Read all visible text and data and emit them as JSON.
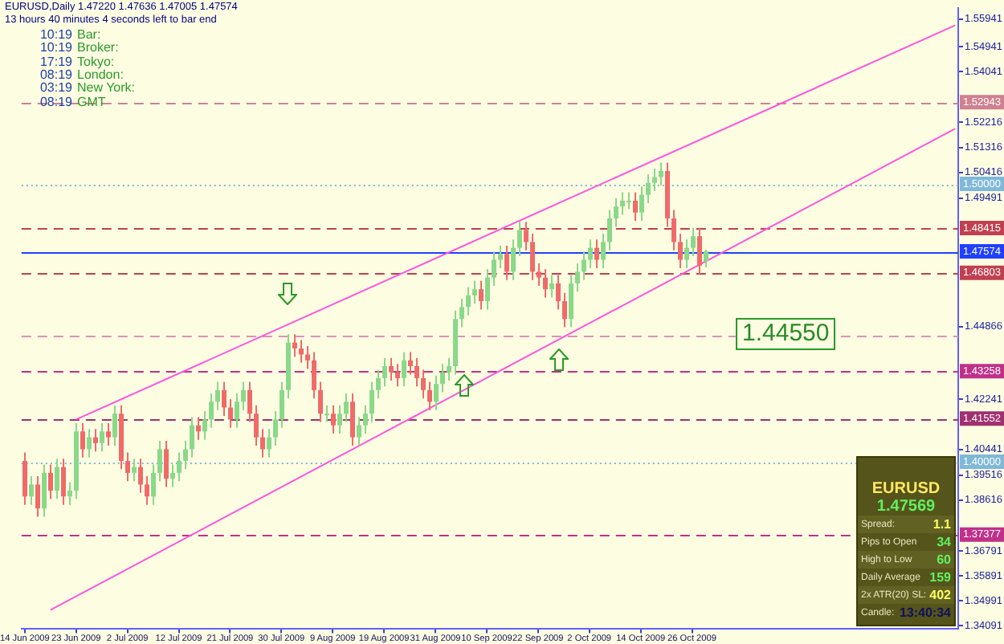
{
  "chart_data": {
    "type": "candlestick",
    "categories": [
      "14 Jun 2009",
      null,
      null,
      null,
      null,
      null,
      null,
      null,
      "23 Jun 2009",
      null,
      null,
      null,
      null,
      null,
      null,
      null,
      "2 Jul 2009",
      null,
      null,
      null,
      null,
      null,
      null,
      null,
      "12 Jul 2009",
      null,
      null,
      null,
      null,
      null,
      null,
      null,
      "21 Jul 2009",
      null,
      null,
      null,
      null,
      null,
      null,
      null,
      "30 Jul 2009",
      null,
      null,
      null,
      null,
      null,
      null,
      null,
      "9 Aug 2009",
      null,
      null,
      null,
      null,
      null,
      null,
      null,
      "19 Aug 2009",
      null,
      null,
      null,
      null,
      null,
      null,
      null,
      "31 Aug 2009",
      null,
      null,
      null,
      null,
      null,
      null,
      null,
      "10 Sep 2009",
      null,
      null,
      null,
      null,
      null,
      null,
      null,
      "22 Sep 2009",
      null,
      null,
      null,
      null,
      null,
      null,
      null,
      "2 Oct 2009",
      null,
      null,
      null,
      null,
      null,
      null,
      null,
      "14 Oct 2009",
      null,
      null,
      null,
      null,
      null,
      null,
      null,
      "26 Oct 2009",
      null,
      null,
      null,
      null,
      null,
      null,
      null,
      null,
      null,
      null,
      null,
      null,
      null,
      null,
      null,
      null,
      null,
      null,
      null,
      null,
      null,
      null,
      null,
      null,
      null,
      null,
      null,
      null,
      null,
      null,
      null,
      null,
      null,
      null,
      null,
      null,
      null,
      null,
      null,
      null,
      null
    ],
    "ohlc": [
      [
        1.4003,
        1.4033,
        1.3845,
        1.3875
      ],
      [
        1.3875,
        1.3948,
        1.3845,
        1.3918
      ],
      [
        1.3918,
        1.3948,
        1.3802,
        1.3832
      ],
      [
        1.3832,
        1.399,
        1.3802,
        1.396
      ],
      [
        1.396,
        1.399,
        1.3866,
        1.3896
      ],
      [
        1.3896,
        1.4011,
        1.3866,
        1.3981
      ],
      [
        1.3981,
        1.4011,
        1.3845,
        1.3875
      ],
      [
        1.3875,
        1.3926,
        1.3845,
        1.3896
      ],
      [
        1.3896,
        1.4139,
        1.3866,
        1.4109
      ],
      [
        1.4109,
        1.4139,
        1.4015,
        1.4045
      ],
      [
        1.4045,
        1.4118,
        1.4015,
        1.4088
      ],
      [
        1.4088,
        1.4118,
        1.4037,
        1.4067
      ],
      [
        1.4067,
        1.4139,
        1.4037,
        1.4109
      ],
      [
        1.4109,
        1.4139,
        1.4058,
        1.4088
      ],
      [
        1.4088,
        1.4203,
        1.4058,
        1.4173
      ],
      [
        1.4173,
        1.4203,
        1.3973,
        1.4003
      ],
      [
        1.4003,
        1.4033,
        1.393,
        1.396
      ],
      [
        1.396,
        1.4011,
        1.393,
        1.3981
      ],
      [
        1.3981,
        1.4011,
        1.3888,
        1.3918
      ],
      [
        1.3918,
        1.3948,
        1.3845,
        1.3875
      ],
      [
        1.3875,
        1.399,
        1.3845,
        1.396
      ],
      [
        1.396,
        1.4075,
        1.393,
        1.4045
      ],
      [
        1.4045,
        1.4075,
        1.3909,
        1.3939
      ],
      [
        1.3939,
        1.399,
        1.3909,
        1.396
      ],
      [
        1.396,
        1.4033,
        1.393,
        1.4003
      ],
      [
        1.4003,
        1.4075,
        1.3973,
        1.4045
      ],
      [
        1.4045,
        1.4161,
        1.4015,
        1.4131
      ],
      [
        1.4131,
        1.4161,
        1.4079,
        1.4109
      ],
      [
        1.4109,
        1.4182,
        1.4079,
        1.4152
      ],
      [
        1.4152,
        1.4246,
        1.4122,
        1.4216
      ],
      [
        1.4216,
        1.4288,
        1.4186,
        1.4258
      ],
      [
        1.4258,
        1.4288,
        1.4165,
        1.4195
      ],
      [
        1.4195,
        1.4225,
        1.4122,
        1.4152
      ],
      [
        1.4152,
        1.4246,
        1.4122,
        1.4216
      ],
      [
        1.4216,
        1.4288,
        1.4186,
        1.4258
      ],
      [
        1.4258,
        1.4288,
        1.4143,
        1.4173
      ],
      [
        1.4173,
        1.4203,
        1.4058,
        1.4088
      ],
      [
        1.4088,
        1.4118,
        1.4015,
        1.4045
      ],
      [
        1.4045,
        1.4118,
        1.4015,
        1.4088
      ],
      [
        1.4088,
        1.4182,
        1.4058,
        1.4152
      ],
      [
        1.4152,
        1.4288,
        1.4122,
        1.4258
      ],
      [
        1.4258,
        1.4459,
        1.4228,
        1.4429
      ],
      [
        1.4429,
        1.4459,
        1.4378,
        1.4408
      ],
      [
        1.4408,
        1.4438,
        1.4356,
        1.4386
      ],
      [
        1.4386,
        1.4416,
        1.4335,
        1.4365
      ],
      [
        1.4365,
        1.4395,
        1.4228,
        1.4258
      ],
      [
        1.4258,
        1.4288,
        1.4143,
        1.4173
      ],
      [
        1.4173,
        1.4203,
        1.4143,
        1.4173
      ],
      [
        1.4173,
        1.4203,
        1.4101,
        1.4131
      ],
      [
        1.4131,
        1.4203,
        1.4101,
        1.4173
      ],
      [
        1.4173,
        1.4246,
        1.4143,
        1.4216
      ],
      [
        1.4216,
        1.4246,
        1.4058,
        1.4088
      ],
      [
        1.4088,
        1.4161,
        1.4058,
        1.4131
      ],
      [
        1.4131,
        1.4203,
        1.4101,
        1.4173
      ],
      [
        1.4173,
        1.4288,
        1.4143,
        1.4258
      ],
      [
        1.4258,
        1.4331,
        1.4228,
        1.4301
      ],
      [
        1.4301,
        1.4374,
        1.4271,
        1.4344
      ],
      [
        1.4344,
        1.4374,
        1.4292,
        1.4322
      ],
      [
        1.4322,
        1.4352,
        1.4271,
        1.4301
      ],
      [
        1.4301,
        1.4395,
        1.4271,
        1.4365
      ],
      [
        1.4365,
        1.4395,
        1.4314,
        1.4344
      ],
      [
        1.4344,
        1.4374,
        1.4271,
        1.4301
      ],
      [
        1.4301,
        1.4331,
        1.4228,
        1.4258
      ],
      [
        1.4258,
        1.4288,
        1.4186,
        1.4216
      ],
      [
        1.4216,
        1.431,
        1.4186,
        1.428
      ],
      [
        1.428,
        1.4352,
        1.425,
        1.4322
      ],
      [
        1.4322,
        1.4374,
        1.4292,
        1.4344
      ],
      [
        1.4344,
        1.4544,
        1.4314,
        1.4514
      ],
      [
        1.4514,
        1.4587,
        1.4484,
        1.4557
      ],
      [
        1.4557,
        1.4629,
        1.4527,
        1.4599
      ],
      [
        1.4599,
        1.4651,
        1.4569,
        1.4621
      ],
      [
        1.4621,
        1.4651,
        1.4548,
        1.4578
      ],
      [
        1.4578,
        1.4693,
        1.4548,
        1.4663
      ],
      [
        1.4663,
        1.4757,
        1.4633,
        1.4727
      ],
      [
        1.4727,
        1.4778,
        1.4697,
        1.4748
      ],
      [
        1.4748,
        1.4778,
        1.4654,
        1.4684
      ],
      [
        1.4684,
        1.48,
        1.4654,
        1.477
      ],
      [
        1.477,
        1.4864,
        1.474,
        1.4834
      ],
      [
        1.4834,
        1.4864,
        1.4761,
        1.4791
      ],
      [
        1.4791,
        1.4821,
        1.4654,
        1.4684
      ],
      [
        1.4684,
        1.4714,
        1.4633,
        1.4663
      ],
      [
        1.4663,
        1.4693,
        1.4591,
        1.4621
      ],
      [
        1.4621,
        1.4672,
        1.4591,
        1.4642
      ],
      [
        1.4642,
        1.4672,
        1.4548,
        1.4578
      ],
      [
        1.4578,
        1.4608,
        1.4484,
        1.4514
      ],
      [
        1.4514,
        1.4672,
        1.4484,
        1.4642
      ],
      [
        1.4642,
        1.4714,
        1.4612,
        1.4684
      ],
      [
        1.4684,
        1.4757,
        1.4654,
        1.4727
      ],
      [
        1.4727,
        1.48,
        1.4697,
        1.477
      ],
      [
        1.477,
        1.48,
        1.4697,
        1.4727
      ],
      [
        1.4727,
        1.4821,
        1.4697,
        1.4791
      ],
      [
        1.4791,
        1.4906,
        1.4761,
        1.4876
      ],
      [
        1.4876,
        1.4949,
        1.4846,
        1.4919
      ],
      [
        1.4919,
        1.497,
        1.4889,
        1.494
      ],
      [
        1.494,
        1.497,
        1.491,
        1.494
      ],
      [
        1.494,
        1.497,
        1.4867,
        1.4897
      ],
      [
        1.4897,
        1.4991,
        1.4867,
        1.4961
      ],
      [
        1.4961,
        1.5034,
        1.4931,
        1.5004
      ],
      [
        1.5004,
        1.5055,
        1.4974,
        1.5025
      ],
      [
        1.5025,
        1.5077,
        1.4995,
        1.5047
      ],
      [
        1.5047,
        1.5077,
        1.4846,
        1.4876
      ],
      [
        1.4876,
        1.4906,
        1.4761,
        1.4791
      ],
      [
        1.4791,
        1.4821,
        1.4697,
        1.4727
      ],
      [
        1.4727,
        1.48,
        1.4697,
        1.477
      ],
      [
        1.477,
        1.4842,
        1.474,
        1.4812
      ],
      [
        1.4812,
        1.4842,
        1.4676,
        1.4706
      ],
      [
        1.4722,
        1.47636,
        1.47005,
        1.47574
      ],
      null,
      null,
      null,
      null,
      null,
      null,
      null,
      null,
      null,
      null,
      null,
      null,
      null,
      null,
      null,
      null,
      null,
      null,
      null,
      null,
      null,
      null,
      null,
      null,
      null,
      null,
      null,
      null,
      null,
      null,
      null,
      null,
      null,
      null,
      null,
      null,
      null,
      null,
      null
    ],
    "colors": [
      "#f06a6a",
      "#8ad88a",
      "#f06a6a",
      "#8ad88a",
      "#f06a6a",
      "#8ad88a",
      "#f06a6a",
      "#8ad88a",
      "#8ad88a",
      "#f06a6a",
      "#8ad88a",
      "#f06a6a",
      "#8ad88a",
      "#f06a6a",
      "#8ad88a",
      "#f06a6a",
      "#f06a6a",
      "#8ad88a",
      "#f06a6a",
      "#f06a6a",
      "#8ad88a",
      "#8ad88a",
      "#f06a6a",
      "#8ad88a",
      "#8ad88a",
      "#8ad88a",
      "#8ad88a",
      "#f06a6a",
      "#8ad88a",
      "#8ad88a",
      "#8ad88a",
      "#f06a6a",
      "#f06a6a",
      "#8ad88a",
      "#8ad88a",
      "#f06a6a",
      "#f06a6a",
      "#f06a6a",
      "#8ad88a",
      "#8ad88a",
      "#8ad88a",
      "#8ad88a",
      "#f06a6a",
      "#f06a6a",
      "#f06a6a",
      "#f06a6a",
      "#f06a6a",
      "#8ad88a",
      "#f06a6a",
      "#8ad88a",
      "#8ad88a",
      "#f06a6a",
      "#8ad88a",
      "#8ad88a",
      "#8ad88a",
      "#8ad88a",
      "#8ad88a",
      "#f06a6a",
      "#f06a6a",
      "#8ad88a",
      "#f06a6a",
      "#f06a6a",
      "#f06a6a",
      "#f06a6a",
      "#8ad88a",
      "#8ad88a",
      "#8ad88a",
      "#8ad88a",
      "#8ad88a",
      "#8ad88a",
      "#8ad88a",
      "#f06a6a",
      "#8ad88a",
      "#8ad88a",
      "#8ad88a",
      "#f06a6a",
      "#8ad88a",
      "#8ad88a",
      "#f06a6a",
      "#f06a6a",
      "#f06a6a",
      "#f06a6a",
      "#8ad88a",
      "#f06a6a",
      "#f06a6a",
      "#8ad88a",
      "#8ad88a",
      "#8ad88a",
      "#8ad88a",
      "#f06a6a",
      "#8ad88a",
      "#8ad88a",
      "#8ad88a",
      "#8ad88a",
      "#8ad88a",
      "#f06a6a",
      "#8ad88a",
      "#8ad88a",
      "#8ad88a",
      "#8ad88a",
      "#f06a6a",
      "#f06a6a",
      "#f06a6a",
      "#8ad88a",
      "#8ad88a",
      "#f06a6a",
      "#8ad88a",
      null,
      null,
      null,
      null,
      null,
      null,
      null,
      null,
      null,
      null,
      null,
      null,
      null,
      null,
      null,
      null,
      null,
      null,
      null,
      null,
      null,
      null,
      null,
      null,
      null,
      null,
      null,
      null,
      null,
      null,
      null,
      null,
      null,
      null,
      null,
      null,
      null,
      null,
      null
    ],
    "series": [
      {
        "type": "line",
        "color": "#ff55dd",
        "values": [
          null,
          null,
          null,
          null,
          null,
          null,
          null,
          null,
          1.4152,
          null,
          null,
          null,
          null,
          null,
          null,
          null,
          null,
          null,
          null,
          null,
          null,
          null,
          null,
          null,
          null,
          null,
          null,
          null,
          null,
          null,
          null,
          null,
          null,
          null,
          null,
          null,
          null,
          null,
          null,
          null,
          null,
          null,
          null,
          null,
          null,
          null,
          null,
          null,
          null,
          null,
          null,
          null,
          null,
          null,
          null,
          null,
          null,
          null,
          null,
          null,
          null,
          null,
          null,
          null,
          null,
          null,
          null,
          null,
          null,
          null,
          null,
          null,
          null,
          null,
          null,
          null,
          null,
          null,
          null,
          null,
          null,
          null,
          null,
          null,
          null,
          null,
          null,
          null,
          null,
          null,
          null,
          null,
          null,
          null,
          null,
          null,
          null,
          null,
          null,
          null,
          null,
          null,
          null,
          null,
          null,
          null,
          null,
          null,
          null,
          null,
          null,
          null,
          null,
          null,
          null,
          null,
          null,
          null,
          null,
          null,
          null,
          null,
          null,
          null,
          null,
          null,
          null,
          null,
          null,
          null,
          null,
          null,
          null,
          null,
          null,
          null,
          null,
          null,
          null,
          null,
          null,
          null,
          null,
          null,
          null,
          1.5571
        ]
      },
      {
        "type": "line",
        "color": "#ff55dd",
        "values": [
          null,
          null,
          null,
          null,
          1.3466,
          null,
          null,
          null,
          null,
          null,
          null,
          null,
          null,
          null,
          null,
          null,
          null,
          null,
          null,
          null,
          null,
          null,
          null,
          null,
          null,
          null,
          null,
          null,
          null,
          null,
          null,
          null,
          null,
          null,
          null,
          null,
          null,
          null,
          null,
          null,
          null,
          null,
          null,
          null,
          null,
          null,
          null,
          null,
          null,
          null,
          null,
          null,
          null,
          null,
          null,
          null,
          null,
          null,
          null,
          null,
          null,
          null,
          null,
          null,
          null,
          null,
          null,
          null,
          null,
          null,
          null,
          null,
          null,
          null,
          null,
          null,
          null,
          null,
          null,
          null,
          null,
          null,
          null,
          null,
          null,
          null,
          null,
          null,
          null,
          null,
          null,
          null,
          null,
          null,
          null,
          null,
          null,
          null,
          null,
          null,
          null,
          null,
          null,
          null,
          null,
          null,
          null,
          null,
          null,
          null,
          null,
          null,
          null,
          null,
          null,
          null,
          null,
          null,
          null,
          null,
          null,
          null,
          null,
          null,
          null,
          null,
          null,
          null,
          null,
          null,
          null,
          null,
          null,
          null,
          null,
          null,
          null,
          null,
          null,
          null,
          null,
          null,
          null,
          null,
          null,
          1.5199
        ]
      }
    ],
    "ylim": [
      1.34,
      1.5634
    ],
    "yticks": [
      1.55941,
      1.54941,
      1.54041,
      1.52216,
      1.51316,
      1.50416,
      1.49491,
      1.44866,
      1.42241,
      1.40441,
      1.39516,
      1.38616,
      1.36791,
      1.35891,
      1.34991,
      1.34091
    ],
    "ref_lines": [
      {
        "axis": "y",
        "value": 1.52943,
        "label": "1.52943",
        "color": "#d08090",
        "line_style": "dashed"
      },
      {
        "axis": "y",
        "value": 1.5,
        "label": "1.50000",
        "color": "#80b8d8",
        "line_style": "dotted"
      },
      {
        "axis": "y",
        "value": 1.48415,
        "label": "1.48415",
        "color": "#c04050",
        "line_style": "dashed"
      },
      {
        "axis": "y",
        "value": 1.47574,
        "label": "1.47574",
        "color": "#2040ff",
        "line_style": "solid"
      },
      {
        "axis": "y",
        "value": 1.46803,
        "label": "1.46803",
        "color": "#c04050",
        "line_style": "dashed"
      },
      {
        "axis": "y",
        "value": 1.4455,
        "label": null,
        "color": "#e090b8",
        "line_style": "dashed"
      },
      {
        "axis": "y",
        "value": 1.43258,
        "label": "1.43258",
        "color": "#c0308a",
        "line_style": "dashed"
      },
      {
        "axis": "y",
        "value": 1.41552,
        "label": "1.41552",
        "color": "#a03070",
        "line_style": "dashed"
      },
      {
        "axis": "y",
        "value": 1.4,
        "label": "1.40000",
        "color": "#80b8d8",
        "line_style": "dotted"
      },
      {
        "axis": "y",
        "value": 1.37377,
        "label": "1.37377",
        "color": "#c0308a",
        "line_style": "dashed"
      }
    ],
    "annotations": [
      "EURUSD,Daily  1.47220 1.47636 1.47005 1.47574",
      "13 hours 40 minutes 4 seconds left to bar end",
      "10:19",
      "Bar:",
      "10:19",
      "Broker:",
      "17:19",
      "Tokyo:",
      "08:19",
      "London:",
      "03:19",
      "New York:",
      "08:19",
      "GMT",
      "1.44550",
      "EURUSD",
      "1.47569",
      "Spread:",
      "1.1",
      "Pips to Open",
      "34",
      "High to Low",
      "60",
      "Daily Average",
      "159",
      "2x ATR(20) SL:",
      "402",
      "Candle:",
      "13:40:34"
    ]
  }
}
